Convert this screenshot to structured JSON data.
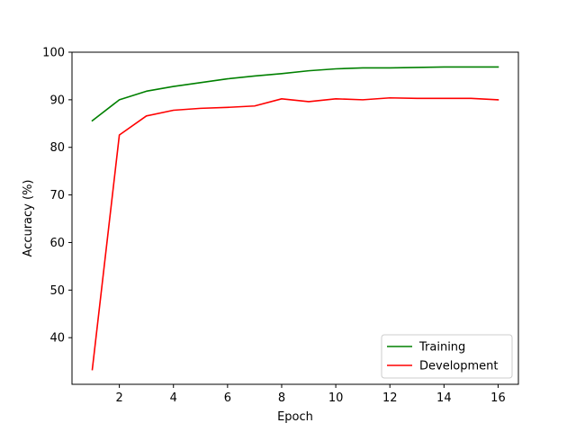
{
  "chart_data": {
    "type": "line",
    "title": "",
    "xlabel": "Epoch",
    "ylabel": "Accuracy (%)",
    "xlim": [
      0.25,
      16.75
    ],
    "ylim": [
      30.2,
      100
    ],
    "xticks": [
      2,
      4,
      6,
      8,
      10,
      12,
      14,
      16
    ],
    "yticks": [
      40,
      50,
      60,
      70,
      80,
      90,
      100
    ],
    "grid": false,
    "legend_position": "lower right",
    "x": [
      1,
      2,
      3,
      4,
      5,
      6,
      7,
      8,
      9,
      10,
      11,
      12,
      13,
      14,
      15,
      16
    ],
    "series": [
      {
        "name": "Training",
        "color": "#008000",
        "values": [
          85.6,
          90.0,
          91.8,
          92.8,
          93.6,
          94.4,
          95.0,
          95.5,
          96.1,
          96.5,
          96.7,
          96.7,
          96.8,
          96.9,
          96.9,
          96.9
        ]
      },
      {
        "name": "Development",
        "color": "#ff0000",
        "values": [
          33.3,
          82.6,
          86.6,
          87.8,
          88.2,
          88.4,
          88.7,
          90.2,
          89.6,
          90.2,
          90.0,
          90.4,
          90.3,
          90.3,
          90.3,
          90.0
        ]
      }
    ]
  }
}
